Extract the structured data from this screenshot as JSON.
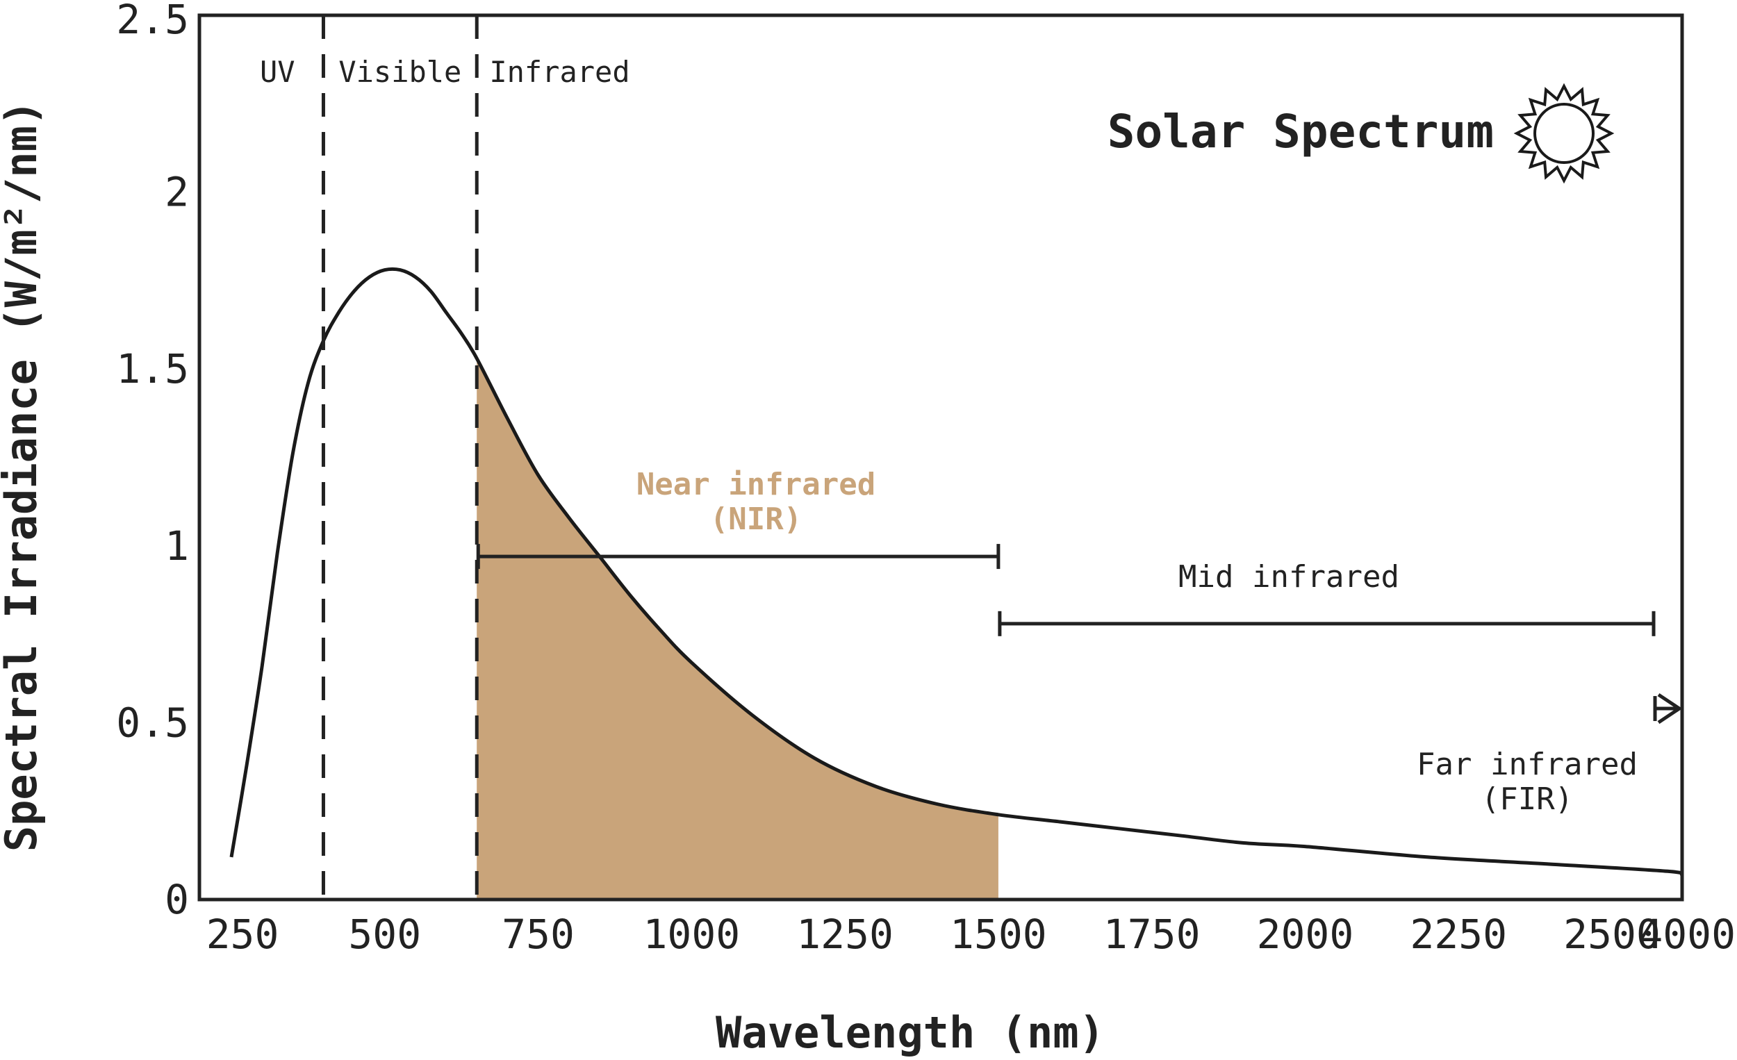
{
  "chart_data": {
    "type": "area",
    "title": "Solar Spectrum",
    "xlabel": "Wavelength (nm)",
    "ylabel": "Spectral Irradiance (W/m²/nm)",
    "x_ticks": [
      "250",
      "500",
      "750",
      "1000",
      "1250",
      "1500",
      "1750",
      "2000",
      "2250",
      "2500",
      "4000"
    ],
    "y_ticks": [
      "0",
      "0.5",
      "1",
      "1.5",
      "2",
      "2.5"
    ],
    "ylim": [
      0,
      2.5
    ],
    "grid": false,
    "x_scale": "piecewise",
    "series": [
      {
        "x": [
          250,
          275,
          300,
          325,
          350,
          375,
          400,
          425,
          450,
          475,
          500,
          525,
          550,
          575,
          600,
          625,
          650,
          700,
          750,
          800,
          850,
          900,
          950,
          1000,
          1100,
          1200,
          1300,
          1400,
          1500,
          1600,
          1700,
          1800,
          1900,
          2000,
          2200,
          2400,
          2600,
          4000
        ],
        "y": [
          0.12,
          0.38,
          0.66,
          0.98,
          1.26,
          1.46,
          1.58,
          1.66,
          1.72,
          1.76,
          1.78,
          1.78,
          1.76,
          1.72,
          1.66,
          1.6,
          1.53,
          1.36,
          1.2,
          1.08,
          0.97,
          0.86,
          0.76,
          0.67,
          0.52,
          0.4,
          0.32,
          0.27,
          0.24,
          0.22,
          0.2,
          0.18,
          0.16,
          0.15,
          0.12,
          0.1,
          0.08,
          0.07
        ]
      }
    ],
    "shaded_range": {
      "x": [
        650,
        1500
      ],
      "color": "#c9a47a"
    },
    "dividers": [
      {
        "x": 400,
        "style": "dashed"
      },
      {
        "x": 650,
        "style": "dashed"
      }
    ],
    "regions": [
      {
        "label": "UV",
        "x": 325
      },
      {
        "label": "Visible",
        "x": 525
      },
      {
        "label": "Infrared",
        "x": 785
      }
    ],
    "bands": [
      {
        "label": "Near infrared",
        "label2": "(NIR)",
        "x_start": 650,
        "x_end": 1500,
        "y": 0.97,
        "color": "#c9a47a",
        "arrow": false
      },
      {
        "label": "Mid infrared",
        "label2": "",
        "x_start": 1500,
        "x_end": 2575,
        "y": 0.78,
        "color": "#222222",
        "arrow": false
      },
      {
        "label": "Far infrared",
        "label2": "(FIR)",
        "x_start": 2575,
        "x_end": 4000,
        "y": 0.54,
        "color": "#222222",
        "arrow": true
      }
    ],
    "colors": {
      "line": "#1a1a1a",
      "fill": "#c9a47a",
      "axis": "#222222"
    }
  },
  "icons": {
    "title_icon": "sun-icon"
  }
}
